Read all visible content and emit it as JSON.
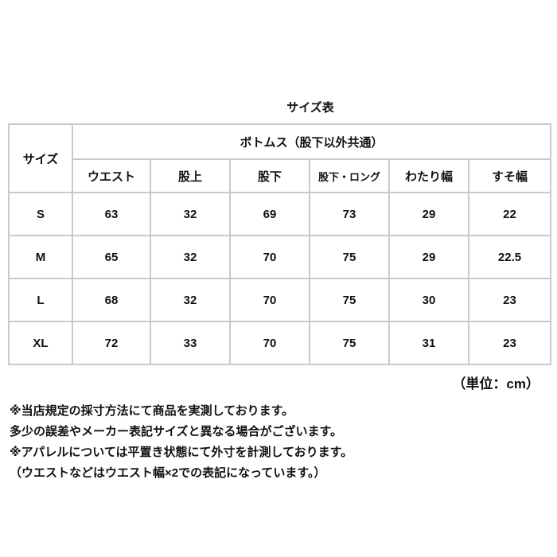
{
  "title": "サイズ表",
  "table": {
    "size_header": "サイズ",
    "group_header": "ボトムス（股下以外共通）",
    "columns": [
      "ウエスト",
      "股上",
      "股下",
      "股下・ロング",
      "わたり幅",
      "すそ幅"
    ],
    "rows": [
      {
        "size": "S",
        "values": [
          "63",
          "32",
          "69",
          "73",
          "29",
          "22"
        ]
      },
      {
        "size": "M",
        "values": [
          "65",
          "32",
          "70",
          "75",
          "29",
          "22.5"
        ]
      },
      {
        "size": "L",
        "values": [
          "68",
          "32",
          "70",
          "75",
          "30",
          "23"
        ]
      },
      {
        "size": "XL",
        "values": [
          "72",
          "33",
          "70",
          "75",
          "31",
          "23"
        ]
      }
    ]
  },
  "unit": "（単位：cm）",
  "notes": [
    "※当店規定の採寸方法にて商品を実測しております。",
    "多少の誤差やメーカー表記サイズと異なる場合がございます。",
    "※アパレルについては平置き状態にて外寸を計測しております。",
    "（ウエストなどはウエスト幅×2での表記になっています。）"
  ],
  "colors": {
    "border": "#cacaca",
    "text": "#111111"
  }
}
